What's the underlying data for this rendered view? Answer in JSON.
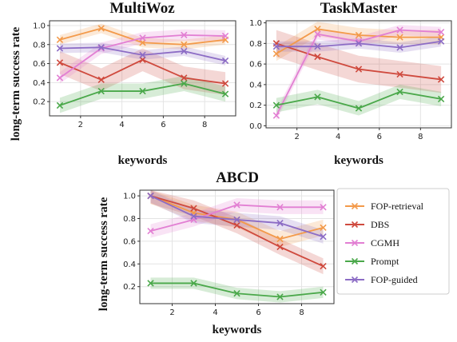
{
  "figure": {
    "shared_ylabel": "long-term success rate",
    "shared_xlabel": "keywords"
  },
  "legend": {
    "placement": "right of ABCD panel",
    "entries": [
      {
        "name": "FOP-retrieval",
        "color": "#f39a4a"
      },
      {
        "name": "DBS",
        "color": "#cf4a3e"
      },
      {
        "name": "CGMH",
        "color": "#e27fd3"
      },
      {
        "name": "Prompt",
        "color": "#4aa84a"
      },
      {
        "name": "FOP-guided",
        "color": "#8c6cc5"
      }
    ]
  },
  "chart_data": [
    {
      "type": "line",
      "title": "MultiWoz",
      "xlabel": "keywords",
      "ylabel": "long-term success rate",
      "x": [
        1,
        3,
        5,
        7,
        9
      ],
      "xticks": [
        2,
        4,
        6,
        8
      ],
      "yticks": [
        0.2,
        0.4,
        0.6,
        0.8,
        1.0
      ],
      "xlim": [
        0.5,
        9.5
      ],
      "ylim": [
        0.05,
        1.05
      ],
      "grid": true,
      "series": [
        {
          "name": "FOP-retrieval",
          "color": "#f39a4a",
          "values": [
            0.85,
            0.97,
            0.82,
            0.8,
            0.85
          ],
          "band": 0.05
        },
        {
          "name": "DBS",
          "color": "#cf4a3e",
          "values": [
            0.61,
            0.43,
            0.64,
            0.45,
            0.39
          ],
          "band": 0.12
        },
        {
          "name": "CGMH",
          "color": "#e27fd3",
          "values": [
            0.45,
            0.76,
            0.87,
            0.9,
            0.89
          ],
          "band": 0.06
        },
        {
          "name": "Prompt",
          "color": "#4aa84a",
          "values": [
            0.16,
            0.31,
            0.31,
            0.39,
            0.28
          ],
          "band": 0.08
        },
        {
          "name": "FOP-guided",
          "color": "#8c6cc5",
          "values": [
            0.76,
            0.77,
            0.69,
            0.73,
            0.63
          ],
          "band": 0.05
        }
      ]
    },
    {
      "type": "line",
      "title": "TaskMaster",
      "xlabel": "keywords",
      "ylabel": "",
      "x": [
        1,
        3,
        5,
        7,
        9
      ],
      "xticks": [
        2,
        4,
        6,
        8
      ],
      "yticks": [
        0.0,
        0.2,
        0.4,
        0.6,
        0.8,
        1.0
      ],
      "xlim": [
        0.5,
        9.5
      ],
      "ylim": [
        -0.02,
        1.02
      ],
      "grid": true,
      "series": [
        {
          "name": "FOP-retrieval",
          "color": "#f39a4a",
          "values": [
            0.7,
            0.94,
            0.88,
            0.86,
            0.86
          ],
          "band": 0.07
        },
        {
          "name": "DBS",
          "color": "#cf4a3e",
          "values": [
            0.8,
            0.67,
            0.55,
            0.5,
            0.45
          ],
          "band": 0.13
        },
        {
          "name": "CGMH",
          "color": "#e27fd3",
          "values": [
            0.1,
            0.89,
            0.82,
            0.93,
            0.91
          ],
          "band": 0.05
        },
        {
          "name": "Prompt",
          "color": "#4aa84a",
          "values": [
            0.2,
            0.28,
            0.17,
            0.33,
            0.26
          ],
          "band": 0.07
        },
        {
          "name": "FOP-guided",
          "color": "#8c6cc5",
          "values": [
            0.77,
            0.77,
            0.8,
            0.76,
            0.82
          ],
          "band": 0.05
        }
      ]
    },
    {
      "type": "line",
      "title": "ABCD",
      "xlabel": "keywords",
      "ylabel": "long-term success rate",
      "x": [
        1,
        3,
        5,
        7,
        9
      ],
      "xticks": [
        2,
        4,
        6,
        8
      ],
      "yticks": [
        0.2,
        0.4,
        0.6,
        0.8,
        1.0
      ],
      "xlim": [
        0.5,
        9.5
      ],
      "ylim": [
        0.05,
        1.05
      ],
      "grid": true,
      "series": [
        {
          "name": "FOP-retrieval",
          "color": "#f39a4a",
          "values": [
            1.0,
            0.85,
            0.79,
            0.62,
            0.72
          ],
          "band": 0.07
        },
        {
          "name": "DBS",
          "color": "#cf4a3e",
          "values": [
            1.0,
            0.89,
            0.74,
            0.55,
            0.38
          ],
          "band": 0.07
        },
        {
          "name": "CGMH",
          "color": "#e27fd3",
          "values": [
            0.69,
            0.79,
            0.92,
            0.9,
            0.9
          ],
          "band": 0.06
        },
        {
          "name": "Prompt",
          "color": "#4aa84a",
          "values": [
            0.23,
            0.23,
            0.14,
            0.11,
            0.15
          ],
          "band": 0.05
        },
        {
          "name": "FOP-guided",
          "color": "#8c6cc5",
          "values": [
            1.0,
            0.82,
            0.79,
            0.76,
            0.64
          ],
          "band": 0.06
        }
      ]
    }
  ]
}
